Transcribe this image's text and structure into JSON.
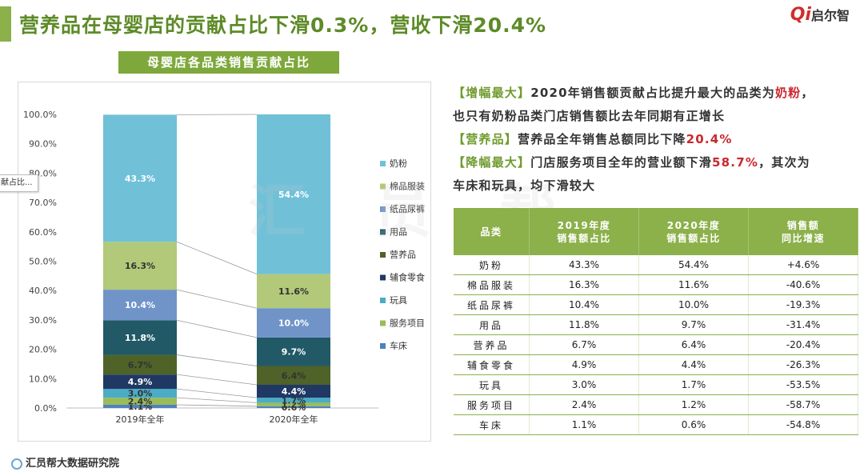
{
  "page": {
    "title": "营养品在母婴店的贡献占比下滑0.3%，营收下滑20.4%",
    "logo_letter": "Qi",
    "logo_text": "启尔智",
    "chart_title": "母婴店各品类销售贡献占比",
    "tooltip_text": "献占比...",
    "watermark": "汇 员 帮",
    "footer": "汇员帮大数据研究院"
  },
  "notes": [
    {
      "segments": [
        {
          "t": "【增幅最大】",
          "c": "b"
        },
        {
          "t": "2020年销售额贡献占比提升最大的品类为",
          "c": ""
        },
        {
          "t": "奶粉",
          "c": "r"
        },
        {
          "t": "，",
          "c": ""
        }
      ]
    },
    {
      "segments": [
        {
          "t": "也只有奶粉品类门店销售额比去年同期有正增长",
          "c": ""
        }
      ]
    },
    {
      "segments": [
        {
          "t": "【营养品】",
          "c": "b"
        },
        {
          "t": "营养品全年销售总额同比下降",
          "c": ""
        },
        {
          "t": "20.4%",
          "c": "r"
        }
      ]
    },
    {
      "segments": [
        {
          "t": "【降幅最大】",
          "c": "b"
        },
        {
          "t": "门店服务项目全年的营业额下滑",
          "c": ""
        },
        {
          "t": "58.7%",
          "c": "r"
        },
        {
          "t": "，其次为",
          "c": ""
        }
      ]
    },
    {
      "segments": [
        {
          "t": "车床和玩具，均下滑较大",
          "c": ""
        }
      ]
    }
  ],
  "table": {
    "headers": [
      "品类",
      "2019年度\n销售额占比",
      "2020年度\n销售额占比",
      "销售额\n同比增速"
    ],
    "rows": [
      [
        "奶粉",
        "43.3%",
        "54.4%",
        "+4.6%"
      ],
      [
        "棉品服装",
        "16.3%",
        "11.6%",
        "-40.6%"
      ],
      [
        "纸品尿裤",
        "10.4%",
        "10.0%",
        "-19.3%"
      ],
      [
        "用品",
        "11.8%",
        "9.7%",
        "-31.4%"
      ],
      [
        "营养品",
        "6.7%",
        "6.4%",
        "-20.4%"
      ],
      [
        "辅食零食",
        "4.9%",
        "4.4%",
        "-26.3%"
      ],
      [
        "玩具",
        "3.0%",
        "1.7%",
        "-53.5%"
      ],
      [
        "服务项目",
        "2.4%",
        "1.2%",
        "-58.7%"
      ],
      [
        "车床",
        "1.1%",
        "0.6%",
        "-54.8%"
      ]
    ]
  },
  "chart_data": {
    "type": "bar",
    "stacked": true,
    "categories": [
      "2019年全年",
      "2020年全年"
    ],
    "ylim": [
      0,
      100
    ],
    "yticks": [
      "0.0%",
      "10.0%",
      "20.0%",
      "30.0%",
      "40.0%",
      "50.0%",
      "60.0%",
      "70.0%",
      "80.0%",
      "90.0%",
      "100.0%"
    ],
    "series": [
      {
        "name": "车床",
        "values": [
          1.1,
          0.6
        ],
        "labels": [
          "1.1%",
          "0.6%"
        ],
        "color": "#4f81bd"
      },
      {
        "name": "服务项目",
        "values": [
          2.4,
          1.2
        ],
        "labels": [
          "2.4%",
          "1.2%"
        ],
        "color": "#9bbb59"
      },
      {
        "name": "玩具",
        "values": [
          3.0,
          1.7
        ],
        "labels": [
          "3.0%",
          "1.7%"
        ],
        "color": "#4bacc6"
      },
      {
        "name": "辅食零食",
        "values": [
          4.9,
          4.4
        ],
        "labels": [
          "4.9%",
          "4.4%"
        ],
        "color": "#1f3864"
      },
      {
        "name": "营养品",
        "values": [
          6.7,
          6.4
        ],
        "labels": [
          "6.7%",
          "6.4%"
        ],
        "color": "#4f6228"
      },
      {
        "name": "用品",
        "values": [
          11.8,
          9.7
        ],
        "labels": [
          "11.8%",
          "9.7%"
        ],
        "color": "#215967"
      },
      {
        "name": "纸品尿裤",
        "values": [
          10.4,
          10.0
        ],
        "labels": [
          "10.4%",
          "10.0%"
        ],
        "color": "#7094c8"
      },
      {
        "name": "棉品服装",
        "values": [
          16.3,
          11.6
        ],
        "labels": [
          "16.3%",
          "11.6%"
        ],
        "color": "#b2c979"
      },
      {
        "name": "奶粉",
        "values": [
          43.3,
          54.4
        ],
        "labels": [
          "43.3%",
          "54.4%"
        ],
        "color": "#70c1d8"
      }
    ],
    "legend_order": [
      "奶粉",
      "棉品服装",
      "纸品尿裤",
      "用品",
      "营养品",
      "辅食零食",
      "玩具",
      "服务项目",
      "车床"
    ],
    "legend_position": "right",
    "grid": false
  }
}
